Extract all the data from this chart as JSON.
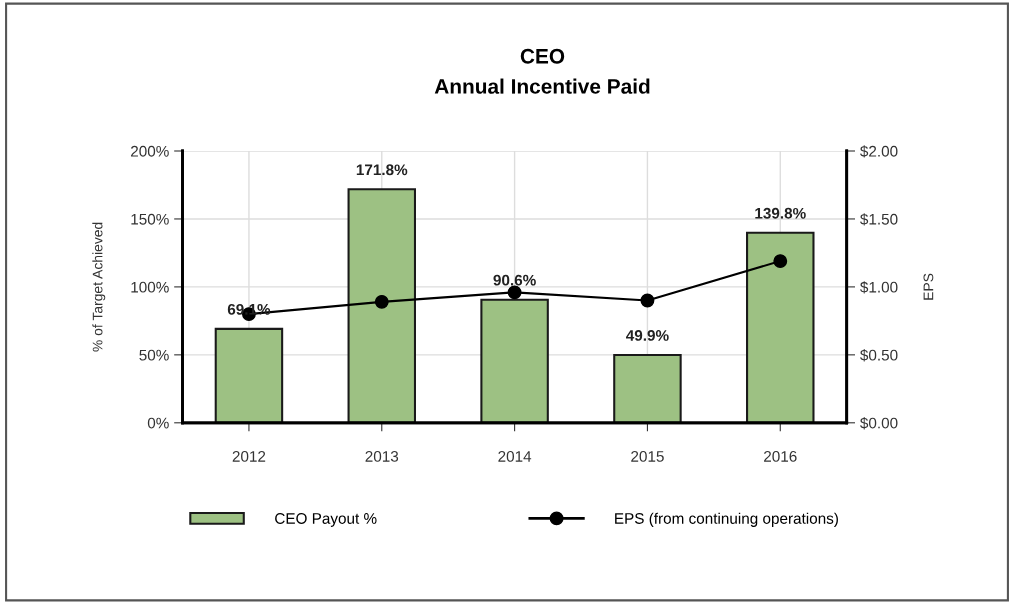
{
  "chart_data": {
    "type": "bar",
    "title": "CEO",
    "subtitle": "Annual Incentive Paid",
    "categories": [
      "2012",
      "2013",
      "2014",
      "2015",
      "2016"
    ],
    "series": [
      {
        "name": "CEO Payout %",
        "color": "#9dc183",
        "values": [
          69.1,
          171.8,
          90.6,
          49.9,
          139.8
        ],
        "value_labels": [
          "69.1%",
          "171.8%",
          "90.6%",
          "49.9%",
          "139.8%"
        ]
      },
      {
        "name": "EPS (from continuing operations)",
        "color": "#000000",
        "type": "line",
        "axis": "y2",
        "marker": "circle",
        "values": [
          0.8,
          0.89,
          0.96,
          0.9,
          1.19
        ]
      }
    ],
    "ylabel": "% of Target Achieved",
    "y2label": "EPS",
    "ylim": [
      0,
      200
    ],
    "yticks": [
      {
        "value": 0,
        "label": "0%"
      },
      {
        "value": 50,
        "label": "50%"
      },
      {
        "value": 100,
        "label": "100%"
      },
      {
        "value": 150,
        "label": "150%"
      },
      {
        "value": 200,
        "label": "200%"
      }
    ],
    "y2lim": [
      0,
      2
    ],
    "y2ticks": [
      {
        "value": 0,
        "label": "$0.00"
      },
      {
        "value": 0.5,
        "label": "$0.50"
      },
      {
        "value": 1,
        "label": "$1.00"
      },
      {
        "value": 1.5,
        "label": "$1.50"
      },
      {
        "value": 2,
        "label": "$2.00"
      }
    ],
    "grid": true,
    "legend": "bottom"
  }
}
